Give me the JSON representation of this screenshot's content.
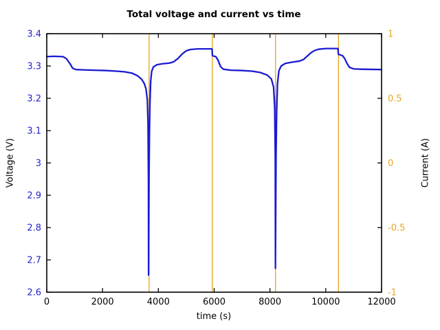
{
  "colors": {
    "voltage_line": "#1a1ad2",
    "voltage_tick_labels": "#2323cd",
    "current_line": "#e4a21c",
    "current_tick_labels": "#e8a526",
    "frame": "#000000",
    "background": "#ffffff",
    "title_text": "#000000"
  },
  "chart_data": {
    "type": "line",
    "title": "Total voltage and current vs time",
    "xlabel": "time (s)",
    "ylabel_left": "Voltage (V)",
    "ylabel_right": "Current (A)",
    "xlim": [
      0,
      12000
    ],
    "ylim_left": [
      2.6,
      3.4
    ],
    "ylim_right": [
      -1,
      1
    ],
    "grid": false,
    "legend": "none",
    "xticks": {
      "values": [
        0,
        2000,
        4000,
        6000,
        8000,
        10000,
        12000
      ],
      "labels": [
        "0",
        "2000",
        "4000",
        "6000",
        "8000",
        "10000",
        "12000"
      ]
    },
    "yticks_left": {
      "values": [
        2.6,
        2.7,
        2.8,
        2.9,
        3.0,
        3.1,
        3.2,
        3.3,
        3.4
      ],
      "labels": [
        "2.6",
        "2.7",
        "2.8",
        "2.9",
        "3",
        "3.1",
        "3.2",
        "3.3",
        "3.4"
      ]
    },
    "yticks_right": {
      "values": [
        -1,
        -0.5,
        0,
        0.5,
        1
      ],
      "labels": [
        "-1",
        "-0.5",
        "0",
        "0.5",
        "1"
      ]
    },
    "series": [
      {
        "name": "Total voltage",
        "axis": "left",
        "style": "line",
        "color": "#1a1ad2",
        "points": [
          [
            0,
            3.329
          ],
          [
            250,
            3.33
          ],
          [
            580,
            3.329
          ],
          [
            700,
            3.323
          ],
          [
            820,
            3.309
          ],
          [
            930,
            3.293
          ],
          [
            1050,
            3.289
          ],
          [
            1300,
            3.288
          ],
          [
            1700,
            3.287
          ],
          [
            2100,
            3.286
          ],
          [
            2500,
            3.284
          ],
          [
            2800,
            3.282
          ],
          [
            3050,
            3.278
          ],
          [
            3250,
            3.27
          ],
          [
            3400,
            3.259
          ],
          [
            3500,
            3.245
          ],
          [
            3560,
            3.228
          ],
          [
            3605,
            3.195
          ],
          [
            3630,
            3.12
          ],
          [
            3645,
            2.95
          ],
          [
            3650,
            2.653
          ],
          [
            3657,
            2.78
          ],
          [
            3665,
            2.95
          ],
          [
            3680,
            3.09
          ],
          [
            3700,
            3.19
          ],
          [
            3725,
            3.252
          ],
          [
            3760,
            3.283
          ],
          [
            3820,
            3.297
          ],
          [
            3950,
            3.304
          ],
          [
            4150,
            3.307
          ],
          [
            4400,
            3.309
          ],
          [
            4550,
            3.313
          ],
          [
            4700,
            3.323
          ],
          [
            4850,
            3.337
          ],
          [
            5000,
            3.347
          ],
          [
            5150,
            3.351
          ],
          [
            5400,
            3.353
          ],
          [
            5700,
            3.353
          ],
          [
            5925,
            3.353
          ],
          [
            5938,
            3.332
          ],
          [
            6060,
            3.329
          ],
          [
            6140,
            3.318
          ],
          [
            6230,
            3.298
          ],
          [
            6330,
            3.29
          ],
          [
            6600,
            3.287
          ],
          [
            7000,
            3.286
          ],
          [
            7350,
            3.284
          ],
          [
            7650,
            3.28
          ],
          [
            7900,
            3.272
          ],
          [
            8050,
            3.26
          ],
          [
            8130,
            3.235
          ],
          [
            8170,
            3.17
          ],
          [
            8190,
            3.02
          ],
          [
            8197,
            2.674
          ],
          [
            8205,
            2.82
          ],
          [
            8218,
            3.02
          ],
          [
            8240,
            3.16
          ],
          [
            8270,
            3.245
          ],
          [
            8320,
            3.285
          ],
          [
            8400,
            3.3
          ],
          [
            8550,
            3.308
          ],
          [
            8800,
            3.312
          ],
          [
            9050,
            3.315
          ],
          [
            9200,
            3.32
          ],
          [
            9330,
            3.33
          ],
          [
            9470,
            3.341
          ],
          [
            9600,
            3.348
          ],
          [
            9750,
            3.352
          ],
          [
            10000,
            3.354
          ],
          [
            10440,
            3.354
          ],
          [
            10452,
            3.336
          ],
          [
            10600,
            3.332
          ],
          [
            10680,
            3.323
          ],
          [
            10760,
            3.308
          ],
          [
            10850,
            3.296
          ],
          [
            11000,
            3.291
          ],
          [
            11300,
            3.29
          ],
          [
            12000,
            3.289
          ]
        ]
      },
      {
        "name": "Current",
        "axis": "right",
        "style": "vertical-pulse",
        "color": "#e4a21c",
        "pulse_times": [
          3668,
          5935,
          8200,
          10455
        ],
        "pulse_span": [
          -1,
          1
        ]
      }
    ]
  }
}
